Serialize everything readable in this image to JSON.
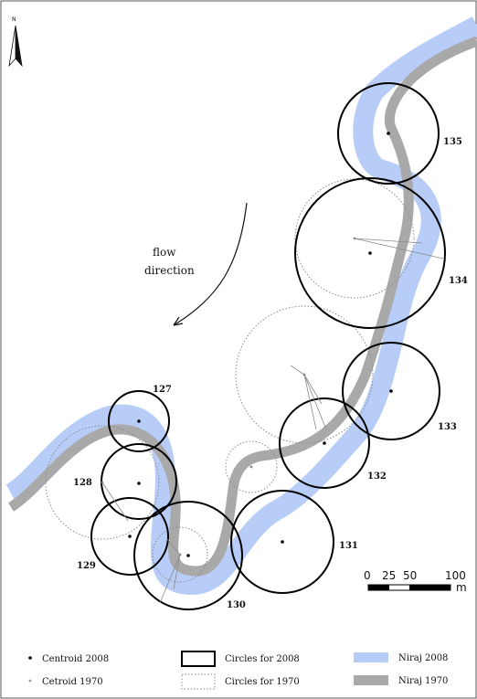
{
  "map": {
    "north_label": "N",
    "flow_label_line1": "flow",
    "flow_label_line2": "direction",
    "scale": {
      "ticks": [
        "0",
        "25",
        "50",
        "100"
      ],
      "unit": "m"
    },
    "circle_ids": [
      "127",
      "128",
      "129",
      "130",
      "131",
      "132",
      "133",
      "134",
      "135"
    ],
    "colors": {
      "river_2008": "#b7ccf6",
      "river_1970": "#a9a9a9",
      "circle_2008": "#000000",
      "circle_1970": "#8a8a8a"
    }
  },
  "legend": {
    "centroid_2008": "Centroid 2008",
    "centroid_1970": "Cetroid 1970",
    "circles_2008": "Circles for 2008",
    "circles_1970": "Circles for 1970",
    "river_2008": "Niraj 2008",
    "river_1970": "Niraj 1970"
  }
}
